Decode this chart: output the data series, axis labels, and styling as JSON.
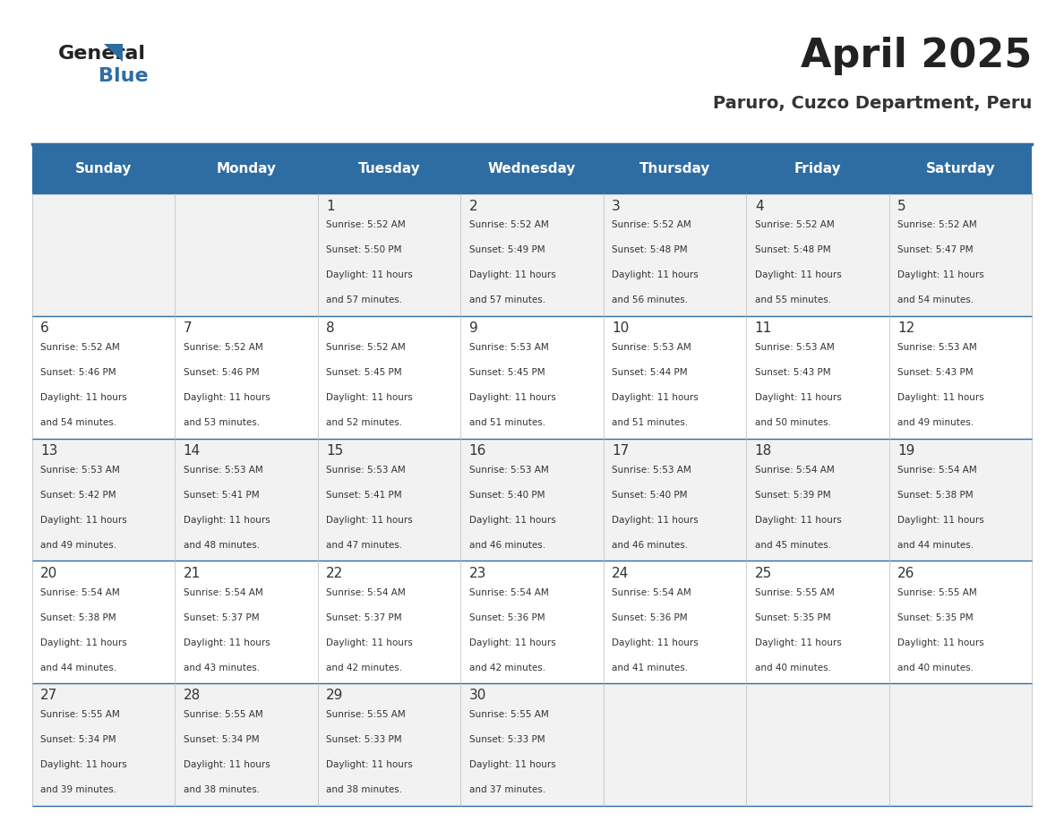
{
  "title": "April 2025",
  "subtitle": "Paruro, Cuzco Department, Peru",
  "header_bg": "#2E6DA4",
  "header_text_color": "#FFFFFF",
  "cell_bg_light": "#F2F2F2",
  "cell_bg_white": "#FFFFFF",
  "day_headers": [
    "Sunday",
    "Monday",
    "Tuesday",
    "Wednesday",
    "Thursday",
    "Friday",
    "Saturday"
  ],
  "title_color": "#222222",
  "subtitle_color": "#333333",
  "line_color": "#2E6DA4",
  "text_color": "#333333",
  "days": [
    {
      "date": 0,
      "day_text": ""
    },
    {
      "date": 0,
      "day_text": ""
    },
    {
      "date": 1,
      "sunrise": "5:52 AM",
      "sunset": "5:50 PM",
      "daylight_rest": "57 minutes."
    },
    {
      "date": 2,
      "sunrise": "5:52 AM",
      "sunset": "5:49 PM",
      "daylight_rest": "57 minutes."
    },
    {
      "date": 3,
      "sunrise": "5:52 AM",
      "sunset": "5:48 PM",
      "daylight_rest": "56 minutes."
    },
    {
      "date": 4,
      "sunrise": "5:52 AM",
      "sunset": "5:48 PM",
      "daylight_rest": "55 minutes."
    },
    {
      "date": 5,
      "sunrise": "5:52 AM",
      "sunset": "5:47 PM",
      "daylight_rest": "54 minutes."
    },
    {
      "date": 6,
      "sunrise": "5:52 AM",
      "sunset": "5:46 PM",
      "daylight_rest": "54 minutes."
    },
    {
      "date": 7,
      "sunrise": "5:52 AM",
      "sunset": "5:46 PM",
      "daylight_rest": "53 minutes."
    },
    {
      "date": 8,
      "sunrise": "5:52 AM",
      "sunset": "5:45 PM",
      "daylight_rest": "52 minutes."
    },
    {
      "date": 9,
      "sunrise": "5:53 AM",
      "sunset": "5:45 PM",
      "daylight_rest": "51 minutes."
    },
    {
      "date": 10,
      "sunrise": "5:53 AM",
      "sunset": "5:44 PM",
      "daylight_rest": "51 minutes."
    },
    {
      "date": 11,
      "sunrise": "5:53 AM",
      "sunset": "5:43 PM",
      "daylight_rest": "50 minutes."
    },
    {
      "date": 12,
      "sunrise": "5:53 AM",
      "sunset": "5:43 PM",
      "daylight_rest": "49 minutes."
    },
    {
      "date": 13,
      "sunrise": "5:53 AM",
      "sunset": "5:42 PM",
      "daylight_rest": "49 minutes."
    },
    {
      "date": 14,
      "sunrise": "5:53 AM",
      "sunset": "5:41 PM",
      "daylight_rest": "48 minutes."
    },
    {
      "date": 15,
      "sunrise": "5:53 AM",
      "sunset": "5:41 PM",
      "daylight_rest": "47 minutes."
    },
    {
      "date": 16,
      "sunrise": "5:53 AM",
      "sunset": "5:40 PM",
      "daylight_rest": "46 minutes."
    },
    {
      "date": 17,
      "sunrise": "5:53 AM",
      "sunset": "5:40 PM",
      "daylight_rest": "46 minutes."
    },
    {
      "date": 18,
      "sunrise": "5:54 AM",
      "sunset": "5:39 PM",
      "daylight_rest": "45 minutes."
    },
    {
      "date": 19,
      "sunrise": "5:54 AM",
      "sunset": "5:38 PM",
      "daylight_rest": "44 minutes."
    },
    {
      "date": 20,
      "sunrise": "5:54 AM",
      "sunset": "5:38 PM",
      "daylight_rest": "44 minutes."
    },
    {
      "date": 21,
      "sunrise": "5:54 AM",
      "sunset": "5:37 PM",
      "daylight_rest": "43 minutes."
    },
    {
      "date": 22,
      "sunrise": "5:54 AM",
      "sunset": "5:37 PM",
      "daylight_rest": "42 minutes."
    },
    {
      "date": 23,
      "sunrise": "5:54 AM",
      "sunset": "5:36 PM",
      "daylight_rest": "42 minutes."
    },
    {
      "date": 24,
      "sunrise": "5:54 AM",
      "sunset": "5:36 PM",
      "daylight_rest": "41 minutes."
    },
    {
      "date": 25,
      "sunrise": "5:55 AM",
      "sunset": "5:35 PM",
      "daylight_rest": "40 minutes."
    },
    {
      "date": 26,
      "sunrise": "5:55 AM",
      "sunset": "5:35 PM",
      "daylight_rest": "40 minutes."
    },
    {
      "date": 27,
      "sunrise": "5:55 AM",
      "sunset": "5:34 PM",
      "daylight_rest": "39 minutes."
    },
    {
      "date": 28,
      "sunrise": "5:55 AM",
      "sunset": "5:34 PM",
      "daylight_rest": "38 minutes."
    },
    {
      "date": 29,
      "sunrise": "5:55 AM",
      "sunset": "5:33 PM",
      "daylight_rest": "38 minutes."
    },
    {
      "date": 30,
      "sunrise": "5:55 AM",
      "sunset": "5:33 PM",
      "daylight_rest": "37 minutes."
    },
    {
      "date": 0,
      "day_text": ""
    },
    {
      "date": 0,
      "day_text": ""
    },
    {
      "date": 0,
      "day_text": ""
    }
  ]
}
